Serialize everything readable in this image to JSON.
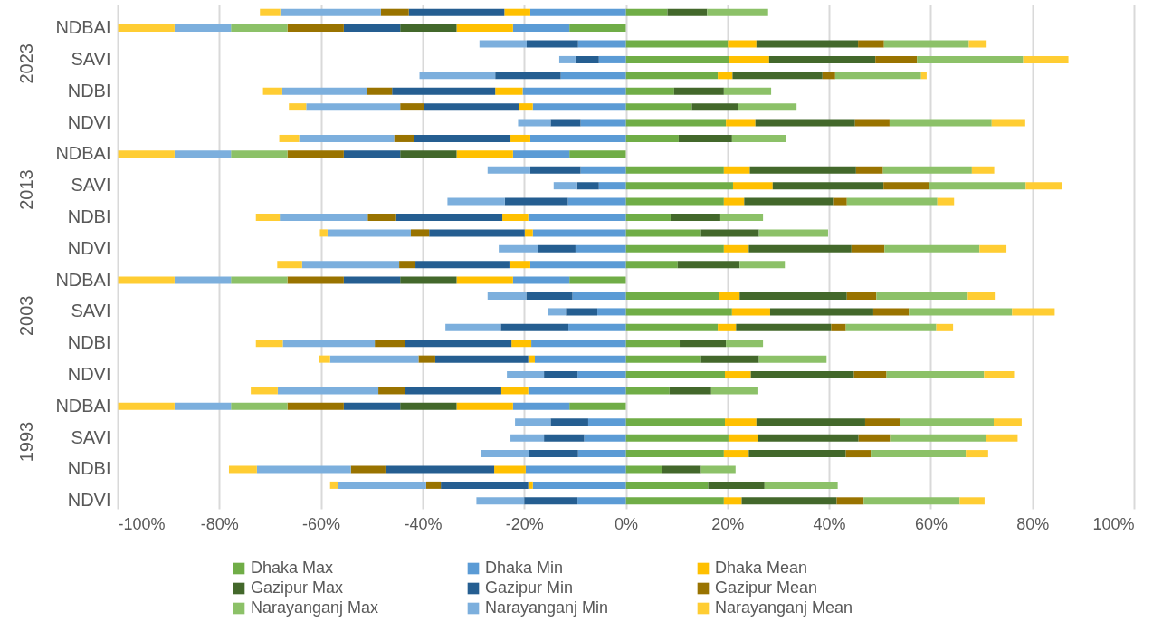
{
  "chart_data": {
    "type": "bar",
    "orientation": "horizontal",
    "stacked": true,
    "grid": "x",
    "legend": "bottom",
    "categories": [
      null,
      "NDBAI",
      null,
      "SAVI",
      null,
      "NDBI",
      null,
      "NDVI",
      null,
      "NDBAI",
      null,
      "SAVI",
      null,
      "NDBI",
      null,
      "NDVI",
      null,
      "NDBAI",
      null,
      "SAVI",
      null,
      "NDBI",
      null,
      "NDVI",
      null,
      "NDBAI",
      null,
      "SAVI",
      null,
      "NDBI",
      null,
      "NDVI"
    ],
    "annotations": [
      "2023",
      "2013",
      "2003",
      "1993"
    ],
    "xlim": [
      -100,
      100
    ],
    "xticks": [
      {
        "value": -100,
        "label": "-100%"
      },
      {
        "value": -80,
        "label": "-80%"
      },
      {
        "value": -60,
        "label": "-60%"
      },
      {
        "value": -40,
        "label": "-40%"
      },
      {
        "value": -20,
        "label": "-20%"
      },
      {
        "value": 0,
        "label": "0%"
      },
      {
        "value": 20,
        "label": "20%"
      },
      {
        "value": 40,
        "label": "40%"
      },
      {
        "value": 60,
        "label": "60%"
      },
      {
        "value": 80,
        "label": "80%"
      },
      {
        "value": 100,
        "label": "100%"
      }
    ],
    "series": [
      {
        "name": "Dhaka Max",
        "color": "#70ad47",
        "values": [
          8.2,
          -11.1,
          20.1,
          20.4,
          18.1,
          9.5,
          13.0,
          19.7,
          10.4,
          -11.1,
          19.3,
          21.1,
          19.3,
          8.8,
          14.8,
          19.3,
          10.2,
          -11.1,
          18.4,
          20.9,
          18.1,
          10.6,
          14.8,
          19.5,
          8.6,
          -11.1,
          19.5,
          20.2,
          19.3,
          7.2,
          16.2,
          19.3
        ]
      },
      {
        "name": "Dhaka Min",
        "color": "#5b9bd5",
        "values": [
          -18.8,
          -11.1,
          -9.4,
          -5.3,
          -12.8,
          -20.3,
          -18.3,
          -8.9,
          -18.8,
          -11.1,
          -8.9,
          -5.3,
          -11.4,
          -19.2,
          -18.3,
          -9.9,
          -18.8,
          -11.1,
          -10.5,
          -5.6,
          -11.3,
          -18.6,
          -17.9,
          -9.5,
          -19.2,
          -11.1,
          -7.4,
          -8.2,
          -9.4,
          -19.7,
          -18.3,
          -9.5
        ]
      },
      {
        "name": "Dhaka Mean",
        "color": "#ffc000",
        "values": [
          -5.1,
          -11.1,
          5.6,
          7.8,
          2.9,
          -5.4,
          -2.7,
          5.8,
          -3.9,
          -11.1,
          5.1,
          7.8,
          4.0,
          -5.1,
          -1.6,
          4.9,
          -4.1,
          -11.1,
          4.0,
          7.5,
          3.6,
          -3.9,
          -1.3,
          5.1,
          -5.3,
          -11.1,
          6.2,
          5.8,
          4.9,
          -6.2,
          -0.9,
          3.5
        ]
      },
      {
        "name": "Gazipur Max",
        "color": "#43682b",
        "values": [
          7.8,
          -11.1,
          20.0,
          20.9,
          17.7,
          9.8,
          9.1,
          19.6,
          10.5,
          -11.1,
          20.9,
          21.8,
          17.5,
          9.8,
          11.4,
          20.2,
          12.2,
          -11.1,
          21.1,
          20.3,
          18.7,
          9.1,
          11.4,
          20.3,
          8.2,
          -11.1,
          21.4,
          19.8,
          19.1,
          7.6,
          11.1,
          18.7
        ]
      },
      {
        "name": "Gazipur Min",
        "color": "#255e91",
        "values": [
          -18.8,
          -11.1,
          -10.1,
          -4.6,
          -12.9,
          -20.3,
          -18.8,
          -5.9,
          -18.9,
          -11.1,
          -9.9,
          -4.3,
          -12.4,
          -20.9,
          -18.8,
          -7.3,
          -18.5,
          -11.1,
          -9.1,
          -6.2,
          -13.3,
          -20.9,
          -18.3,
          -6.6,
          -18.9,
          -11.1,
          -7.4,
          -7.9,
          -9.6,
          -21.4,
          -17.2,
          -10.5
        ]
      },
      {
        "name": "Gazipur Mean",
        "color": "#997300",
        "values": [
          -5.5,
          -11.1,
          5.1,
          8.2,
          2.5,
          -4.9,
          -4.6,
          6.8,
          -4.0,
          -11.1,
          5.3,
          8.9,
          2.7,
          -5.6,
          -3.6,
          6.5,
          -3.2,
          -11.1,
          5.8,
          7.0,
          2.9,
          -6.0,
          -3.3,
          6.4,
          -5.3,
          -11.1,
          6.8,
          6.2,
          4.9,
          -6.8,
          -2.9,
          5.3
        ]
      },
      {
        "name": "Narayanganj Max",
        "color": "#8cc168",
        "values": [
          12.0,
          -11.1,
          16.7,
          20.9,
          16.9,
          9.3,
          11.5,
          20.1,
          10.6,
          -11.1,
          17.5,
          19.1,
          17.8,
          8.4,
          13.6,
          18.7,
          8.9,
          -11.1,
          18.0,
          20.3,
          17.8,
          7.3,
          13.3,
          19.2,
          9.1,
          -11.1,
          18.5,
          18.9,
          18.7,
          6.8,
          14.4,
          18.9
        ]
      },
      {
        "name": "Narayanganj Min",
        "color": "#7cafdd",
        "values": [
          -19.8,
          -11.1,
          -9.3,
          -3.2,
          -14.9,
          -16.7,
          -18.5,
          -6.4,
          -18.7,
          -11.1,
          -8.4,
          -4.6,
          -11.3,
          -17.3,
          -16.4,
          -7.8,
          -19.1,
          -11.1,
          -7.6,
          -3.6,
          -10.9,
          -18.1,
          -17.4,
          -7.3,
          -19.8,
          -11.1,
          -7.0,
          -6.6,
          -9.5,
          -18.5,
          -17.3,
          -9.4
        ]
      },
      {
        "name": "Narayanganj Mean",
        "color": "#ffcd33",
        "values": [
          -4.0,
          -11.1,
          3.5,
          8.9,
          1.1,
          -3.8,
          -3.4,
          6.6,
          -3.9,
          -11.1,
          4.4,
          7.2,
          3.3,
          -4.7,
          -1.5,
          5.3,
          -4.9,
          -11.1,
          5.3,
          8.4,
          3.3,
          -5.3,
          -2.2,
          5.9,
          -5.3,
          -11.1,
          5.5,
          6.2,
          4.4,
          -5.5,
          -1.6,
          4.9
        ]
      }
    ]
  }
}
